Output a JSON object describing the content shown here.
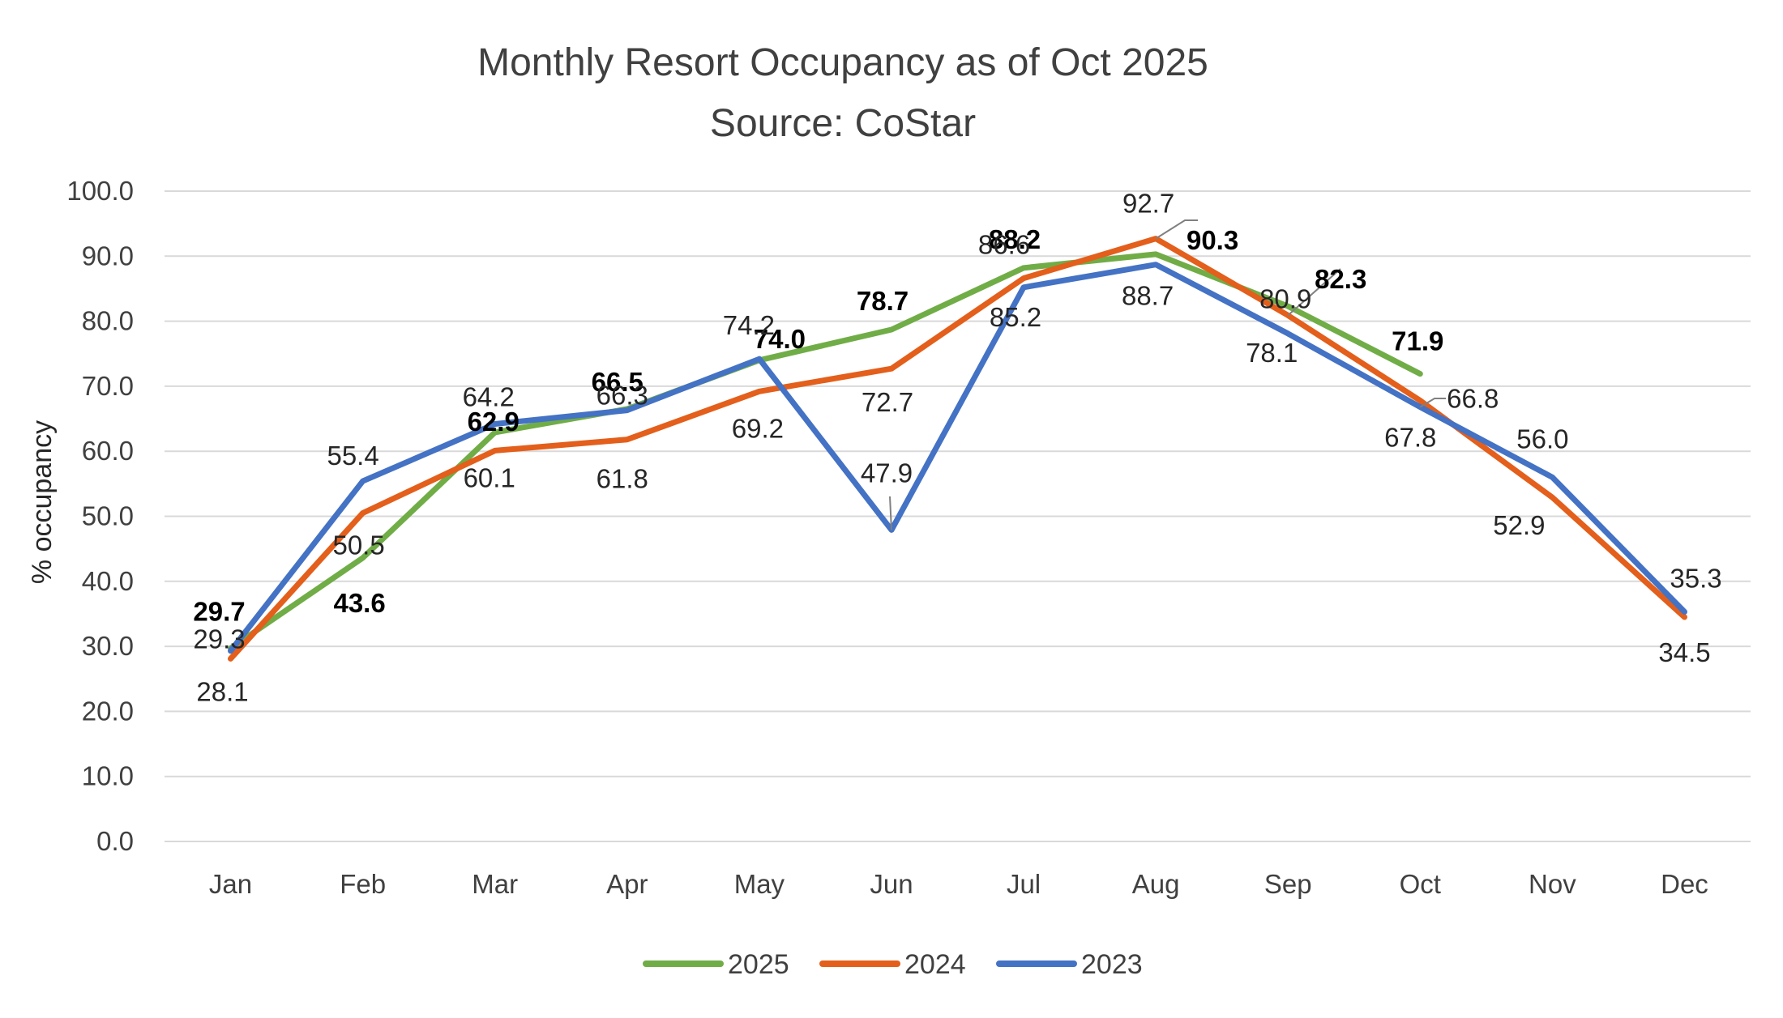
{
  "chart_data": {
    "type": "line",
    "title": [
      "Monthly Resort Occupancy as of Oct 2025",
      "Source: CoStar"
    ],
    "xlabel": "",
    "ylabel": "% occupancy",
    "ylim": [
      0,
      100
    ],
    "yticks": [
      "0.0",
      "10.0",
      "20.0",
      "30.0",
      "40.0",
      "50.0",
      "60.0",
      "70.0",
      "80.0",
      "90.0",
      "100.0"
    ],
    "categories": [
      "Jan",
      "Feb",
      "Mar",
      "Apr",
      "May",
      "Jun",
      "Jul",
      "Aug",
      "Sep",
      "Oct",
      "Nov",
      "Dec"
    ],
    "grid": true,
    "legend_position": "bottom",
    "series": [
      {
        "name": "2025",
        "color": "#70ad47",
        "values": [
          29.7,
          43.6,
          62.9,
          66.5,
          74.0,
          78.7,
          88.2,
          90.3,
          82.3,
          71.9,
          null,
          null
        ],
        "labels": [
          "29.7",
          "43.6",
          "62.9",
          "66.5",
          "74.0",
          "78.7",
          "88.2",
          "90.3",
          "82.3",
          "71.9",
          "",
          ""
        ],
        "bold_labels": true
      },
      {
        "name": "2024",
        "color": "#e35f1b",
        "values": [
          28.1,
          50.5,
          60.1,
          61.8,
          69.2,
          72.7,
          86.6,
          92.7,
          80.9,
          67.8,
          52.9,
          34.5
        ],
        "labels": [
          "28.1",
          "50.5",
          "60.1",
          "61.8",
          "69.2",
          "72.7",
          "86.6",
          "92.7",
          "80.9",
          "67.8",
          "52.9",
          "34.5"
        ],
        "bold_labels": false
      },
      {
        "name": "2023",
        "color": "#4472c4",
        "values": [
          29.3,
          55.4,
          64.2,
          66.3,
          74.2,
          47.9,
          85.2,
          88.7,
          78.1,
          66.8,
          56.0,
          35.3
        ],
        "labels": [
          "29.3",
          "55.4",
          "64.2",
          "66.3",
          "74.2",
          "47.9",
          "85.2",
          "88.7",
          "78.1",
          "66.8",
          "56.0",
          "35.3"
        ],
        "bold_labels": false
      }
    ]
  }
}
